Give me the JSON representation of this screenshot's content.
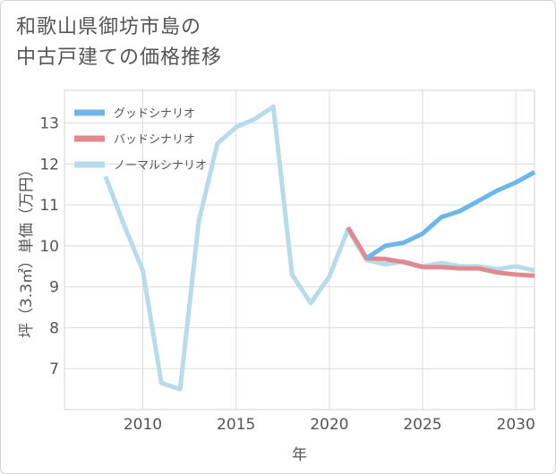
{
  "title": {
    "line1": "和歌山県御坊市島の",
    "line2": "中古戸建ての価格推移"
  },
  "chart_data": {
    "type": "line",
    "xlabel": "年",
    "ylabel": "坪（3.3㎡）単価（万円）",
    "xlim": [
      2005.8,
      2031
    ],
    "ylim": [
      6,
      13.8
    ],
    "xticks": [
      2010,
      2015,
      2020,
      2025,
      2030
    ],
    "yticks": [
      7,
      8,
      9,
      10,
      11,
      12,
      13
    ],
    "grid": true,
    "legend_position": "top-left",
    "series": [
      {
        "name": "グッドシナリオ",
        "color": "#6cb6e8",
        "x": [
          2022,
          2023,
          2024,
          2025,
          2026,
          2027,
          2028,
          2029,
          2030,
          2031
        ],
        "y": [
          9.7,
          10.0,
          10.08,
          10.3,
          10.7,
          10.85,
          11.1,
          11.35,
          11.55,
          11.8
        ]
      },
      {
        "name": "バッドシナリオ",
        "color": "#e08a90",
        "x": [
          2021,
          2022,
          2023,
          2024,
          2025,
          2026,
          2027,
          2028,
          2029,
          2030,
          2031
        ],
        "y": [
          10.45,
          9.7,
          9.68,
          9.6,
          9.48,
          9.48,
          9.45,
          9.45,
          9.35,
          9.3,
          9.27
        ]
      },
      {
        "name": "ノーマルシナリオ",
        "color": "#b8dbea",
        "x": [
          2008,
          2009,
          2010,
          2011,
          2012,
          2013,
          2014,
          2015,
          2016,
          2017,
          2018,
          2019,
          2020,
          2021,
          2022,
          2023,
          2024,
          2025,
          2026,
          2027,
          2028,
          2029,
          2030,
          2031
        ],
        "y": [
          11.7,
          10.5,
          9.4,
          6.65,
          6.5,
          10.6,
          12.5,
          12.9,
          13.1,
          13.4,
          9.3,
          8.6,
          9.25,
          10.4,
          9.65,
          9.55,
          9.62,
          9.5,
          9.58,
          9.5,
          9.5,
          9.43,
          9.5,
          9.4
        ]
      }
    ]
  }
}
